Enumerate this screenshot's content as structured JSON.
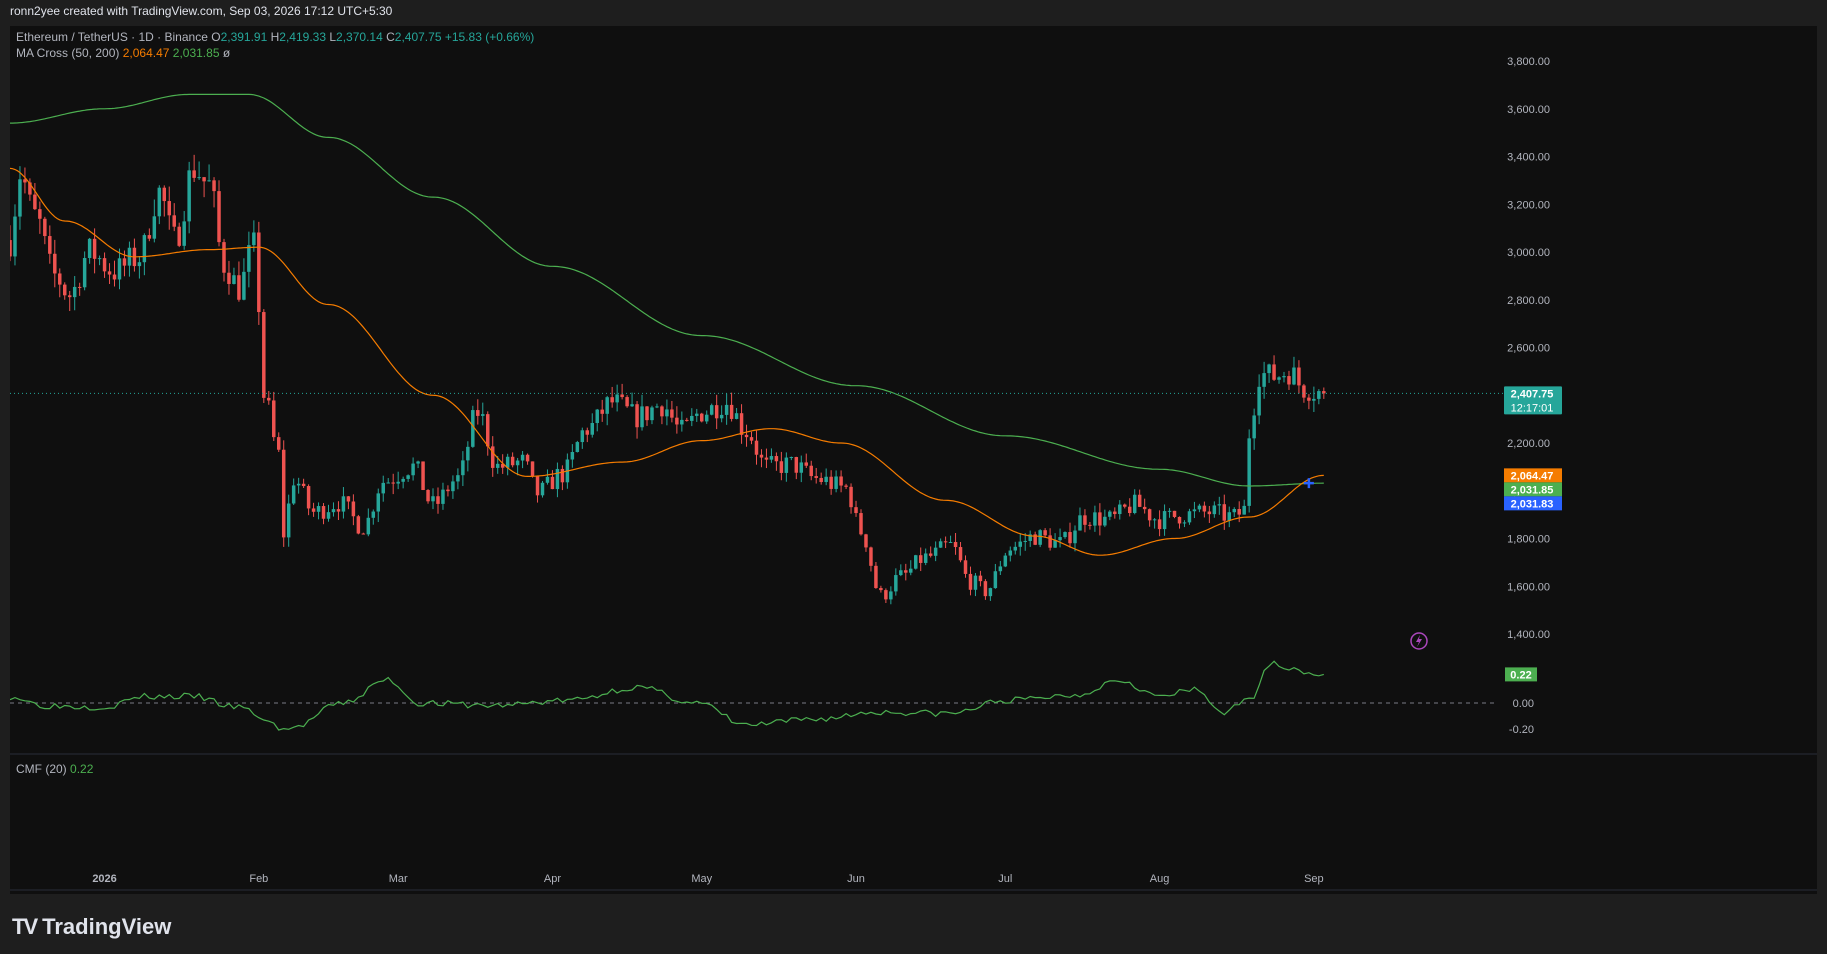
{
  "header": {
    "credit": "ronn2yee created with TradingView.com, Sep 03, 2026 17:12 UTC+5:30"
  },
  "legend": {
    "symbol": "Ethereum / TetherUS · 1D · Binance",
    "o_label": "O",
    "o_value": "2,391.91",
    "h_label": "H",
    "h_value": "2,419.33",
    "l_label": "L",
    "l_value": "2,370.14",
    "c_label": "C",
    "c_value": "2,407.75",
    "change": "+15.83 (+0.66%)",
    "ma_name": "MA Cross (50, 200)",
    "ma50_value": "2,064.47",
    "ma200_value": "2,031.85",
    "ma_symbol": "ø",
    "cmf_name": "CMF (20)",
    "cmf_value": "0.22"
  },
  "badges": {
    "price": "2,407.75",
    "countdown": "12:17:01",
    "ma50": "2,064.47",
    "ma200": "2,031.85",
    "cross": "2,031.83",
    "cmf": "0.22"
  },
  "colors": {
    "up": "#26a69a",
    "down": "#ef5350",
    "ma50": "#f57c00",
    "ma200": "#4caf50",
    "cmf": "#4caf50",
    "cross_badge": "#2962ff",
    "background": "#0f0f0f"
  },
  "brand": {
    "name": "TradingView",
    "mark": "TV"
  },
  "chart_data": [
    {
      "type": "candlestick",
      "symbol": "ETH/USDT",
      "interval": "1D",
      "ylim": [
        1300,
        3900
      ],
      "y_ticks": [
        "3,800.00",
        "3,600.00",
        "3,400.00",
        "3,200.00",
        "3,000.00",
        "2,800.00",
        "2,600.00",
        "2,400.00",
        "2,200.00",
        "2,000.00",
        "1,800.00",
        "1,600.00",
        "1,400.00"
      ],
      "y_tick_values": [
        3800,
        3600,
        3400,
        3200,
        3000,
        2800,
        2600,
        2400,
        2200,
        2000,
        1800,
        1600,
        1400
      ],
      "x_labels": [
        "2026",
        "Feb",
        "Mar",
        "Apr",
        "May",
        "Jun",
        "Jul",
        "Aug",
        "Sep"
      ],
      "x_label_dates": [
        "2026-01-01",
        "2026-02-01",
        "2026-03-01",
        "2026-04-01",
        "2026-05-01",
        "2026-06-01",
        "2026-07-01",
        "2026-08-01",
        "2026-09-01"
      ],
      "x_range": [
        "2025-12-13",
        "2026-10-08"
      ],
      "ohlc_anchors": [
        {
          "date": "2025-12-13",
          "close": 3050
        },
        {
          "date": "2025-12-15",
          "close": 3330
        },
        {
          "date": "2025-12-18",
          "close": 3150
        },
        {
          "date": "2025-12-22",
          "close": 2900
        },
        {
          "date": "2025-12-25",
          "close": 2820
        },
        {
          "date": "2025-12-29",
          "close": 3000
        },
        {
          "date": "2026-01-03",
          "close": 2920
        },
        {
          "date": "2026-01-08",
          "close": 2980
        },
        {
          "date": "2026-01-12",
          "close": 3250
        },
        {
          "date": "2026-01-15",
          "close": 3050
        },
        {
          "date": "2026-01-19",
          "close": 3350
        },
        {
          "date": "2026-01-22",
          "close": 3280
        },
        {
          "date": "2026-01-25",
          "close": 2950
        },
        {
          "date": "2026-01-28",
          "close": 2850
        },
        {
          "date": "2026-01-31",
          "close": 3020
        },
        {
          "date": "2026-02-01",
          "close": 2780
        },
        {
          "date": "2026-02-02",
          "close": 2400
        },
        {
          "date": "2026-02-05",
          "close": 2150
        },
        {
          "date": "2026-02-06",
          "close": 1820
        },
        {
          "date": "2026-02-08",
          "close": 2050
        },
        {
          "date": "2026-02-12",
          "close": 1910
        },
        {
          "date": "2026-02-17",
          "close": 1950
        },
        {
          "date": "2026-02-22",
          "close": 1850
        },
        {
          "date": "2026-02-26",
          "close": 2040
        },
        {
          "date": "2026-03-04",
          "close": 2100
        },
        {
          "date": "2026-03-08",
          "close": 1940
        },
        {
          "date": "2026-03-13",
          "close": 2050
        },
        {
          "date": "2026-03-17",
          "close": 2330
        },
        {
          "date": "2026-03-21",
          "close": 2100
        },
        {
          "date": "2026-03-26",
          "close": 2120
        },
        {
          "date": "2026-03-29",
          "close": 1990
        },
        {
          "date": "2026-04-03",
          "close": 2070
        },
        {
          "date": "2026-04-08",
          "close": 2260
        },
        {
          "date": "2026-04-13",
          "close": 2370
        },
        {
          "date": "2026-04-18",
          "close": 2310
        },
        {
          "date": "2026-04-23",
          "close": 2360
        },
        {
          "date": "2026-04-27",
          "close": 2250
        },
        {
          "date": "2026-05-01",
          "close": 2330
        },
        {
          "date": "2026-05-06",
          "close": 2370
        },
        {
          "date": "2026-05-10",
          "close": 2250
        },
        {
          "date": "2026-05-14",
          "close": 2100
        },
        {
          "date": "2026-05-19",
          "close": 2110
        },
        {
          "date": "2026-05-24",
          "close": 2050
        },
        {
          "date": "2026-05-30",
          "close": 2010
        },
        {
          "date": "2026-06-02",
          "close": 1830
        },
        {
          "date": "2026-06-06",
          "close": 1560
        },
        {
          "date": "2026-06-10",
          "close": 1640
        },
        {
          "date": "2026-06-15",
          "close": 1720
        },
        {
          "date": "2026-06-20",
          "close": 1770
        },
        {
          "date": "2026-06-24",
          "close": 1620
        },
        {
          "date": "2026-06-27",
          "close": 1580
        },
        {
          "date": "2026-07-02",
          "close": 1760
        },
        {
          "date": "2026-07-07",
          "close": 1810
        },
        {
          "date": "2026-07-12",
          "close": 1780
        },
        {
          "date": "2026-07-17",
          "close": 1890
        },
        {
          "date": "2026-07-22",
          "close": 1880
        },
        {
          "date": "2026-07-27",
          "close": 1940
        },
        {
          "date": "2026-08-01",
          "close": 1880
        },
        {
          "date": "2026-08-06",
          "close": 1900
        },
        {
          "date": "2026-08-11",
          "close": 1910
        },
        {
          "date": "2026-08-16",
          "close": 1890
        },
        {
          "date": "2026-08-18",
          "close": 1920
        },
        {
          "date": "2026-08-19",
          "close": 2240
        },
        {
          "date": "2026-08-21",
          "close": 2490
        },
        {
          "date": "2026-08-24",
          "close": 2480
        },
        {
          "date": "2026-08-27",
          "close": 2500
        },
        {
          "date": "2026-08-30",
          "close": 2430
        },
        {
          "date": "2026-09-03",
          "close": 2407.75
        }
      ],
      "ma50_anchors": [
        {
          "date": "2025-12-13",
          "value": 3350
        },
        {
          "date": "2025-12-24",
          "value": 3130
        },
        {
          "date": "2026-01-07",
          "value": 2980
        },
        {
          "date": "2026-01-22",
          "value": 3010
        },
        {
          "date": "2026-02-01",
          "value": 3020
        },
        {
          "date": "2026-02-15",
          "value": 2780
        },
        {
          "date": "2026-03-08",
          "value": 2400
        },
        {
          "date": "2026-03-27",
          "value": 2060
        },
        {
          "date": "2026-04-15",
          "value": 2120
        },
        {
          "date": "2026-05-01",
          "value": 2210
        },
        {
          "date": "2026-05-15",
          "value": 2260
        },
        {
          "date": "2026-05-29",
          "value": 2200
        },
        {
          "date": "2026-06-19",
          "value": 1960
        },
        {
          "date": "2026-07-07",
          "value": 1810
        },
        {
          "date": "2026-07-20",
          "value": 1730
        },
        {
          "date": "2026-08-04",
          "value": 1800
        },
        {
          "date": "2026-08-19",
          "value": 1890
        },
        {
          "date": "2026-09-03",
          "value": 2064.47
        }
      ],
      "ma200_anchors": [
        {
          "date": "2025-12-13",
          "value": 3540
        },
        {
          "date": "2026-01-01",
          "value": 3600
        },
        {
          "date": "2026-01-18",
          "value": 3660
        },
        {
          "date": "2026-01-30",
          "value": 3660
        },
        {
          "date": "2026-02-15",
          "value": 3480
        },
        {
          "date": "2026-03-08",
          "value": 3230
        },
        {
          "date": "2026-04-01",
          "value": 2940
        },
        {
          "date": "2026-05-01",
          "value": 2650
        },
        {
          "date": "2026-06-01",
          "value": 2440
        },
        {
          "date": "2026-07-01",
          "value": 2230
        },
        {
          "date": "2026-08-01",
          "value": 2090
        },
        {
          "date": "2026-08-19",
          "value": 2020
        },
        {
          "date": "2026-09-03",
          "value": 2031.85
        }
      ],
      "current_price": 2407.75,
      "cross_marker": {
        "date": "2026-08-31",
        "value": 2031.83
      }
    },
    {
      "type": "line",
      "name": "CMF (20)",
      "ylim": [
        -0.3,
        0.3
      ],
      "y_ticks": [
        "0.00",
        "-0.20"
      ],
      "y_tick_values": [
        0,
        -0.2
      ],
      "anchors": [
        {
          "date": "2025-12-13",
          "value": 0.05
        },
        {
          "date": "2025-12-20",
          "value": -0.02
        },
        {
          "date": "2026-01-01",
          "value": -0.03
        },
        {
          "date": "2026-01-09",
          "value": 0.05
        },
        {
          "date": "2026-01-19",
          "value": 0.05
        },
        {
          "date": "2026-01-27",
          "value": -0.03
        },
        {
          "date": "2026-02-07",
          "value": -0.2
        },
        {
          "date": "2026-02-18",
          "value": 0.0
        },
        {
          "date": "2026-02-27",
          "value": 0.18
        },
        {
          "date": "2026-03-05",
          "value": 0.0
        },
        {
          "date": "2026-03-20",
          "value": -0.02
        },
        {
          "date": "2026-04-04",
          "value": 0.02
        },
        {
          "date": "2026-04-18",
          "value": 0.12
        },
        {
          "date": "2026-04-30",
          "value": 0.0
        },
        {
          "date": "2026-05-10",
          "value": -0.17
        },
        {
          "date": "2026-05-25",
          "value": -0.12
        },
        {
          "date": "2026-06-05",
          "value": -0.07
        },
        {
          "date": "2026-06-20",
          "value": -0.08
        },
        {
          "date": "2026-07-01",
          "value": 0.02
        },
        {
          "date": "2026-07-15",
          "value": 0.06
        },
        {
          "date": "2026-07-24",
          "value": 0.18
        },
        {
          "date": "2026-08-01",
          "value": 0.05
        },
        {
          "date": "2026-08-08",
          "value": 0.1
        },
        {
          "date": "2026-08-14",
          "value": -0.07
        },
        {
          "date": "2026-08-19",
          "value": 0.02
        },
        {
          "date": "2026-08-23",
          "value": 0.3
        },
        {
          "date": "2026-09-03",
          "value": 0.22
        }
      ]
    }
  ]
}
